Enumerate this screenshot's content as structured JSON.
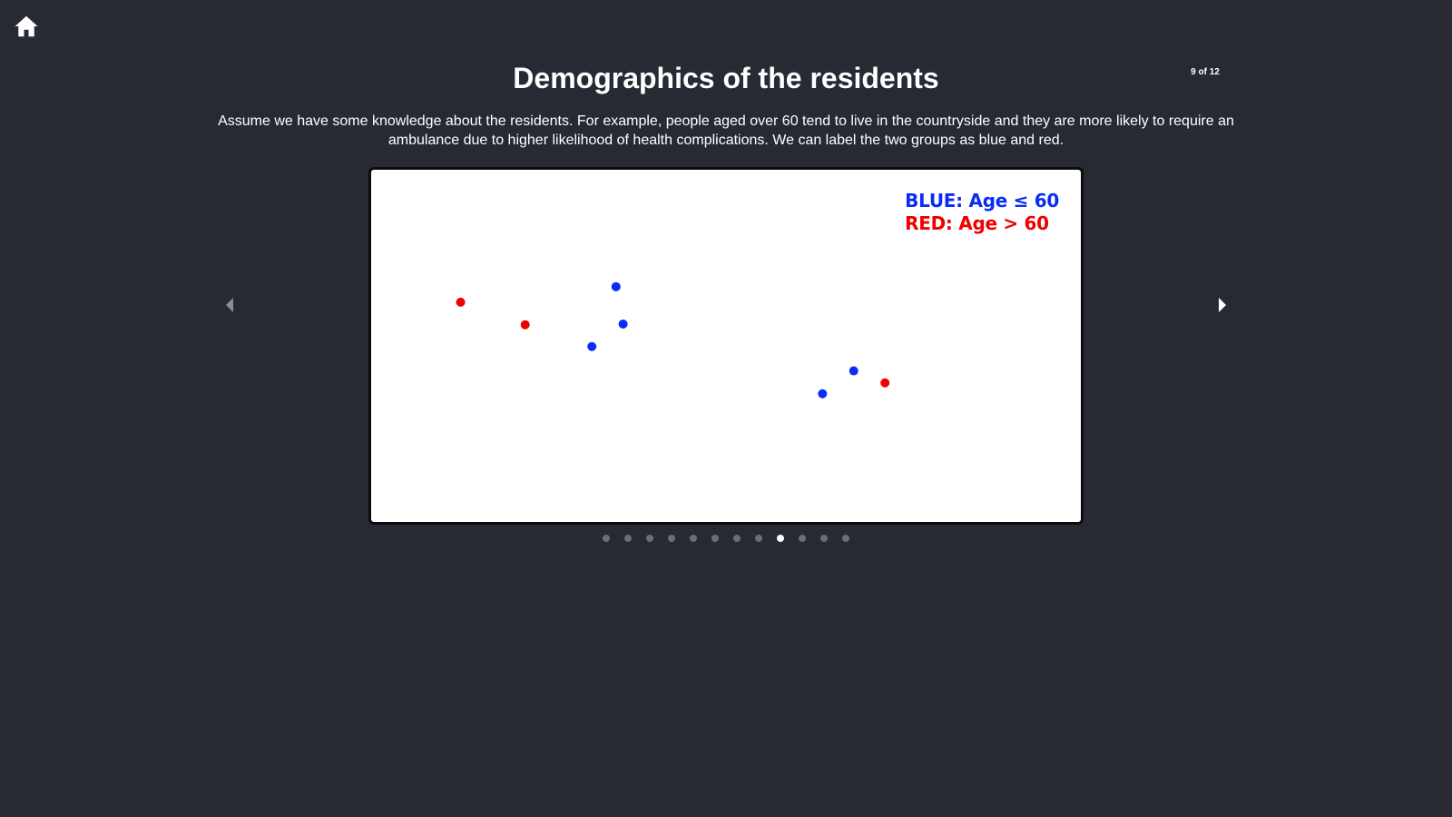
{
  "header": {
    "home_icon": "home-icon",
    "slide_counter": "9 of 12"
  },
  "slide": {
    "title": "Demographics of the residents",
    "description": "Assume we have some knowledge about the residents. For example, people aged over 60 tend to live in the countryside and they are more likely to require an ambulance due to higher likelihood of health complications. We can label the two groups as blue and red.",
    "legend": {
      "blue_label": "BLUE: Age ≤ 60",
      "red_label": "RED: Age > 60"
    }
  },
  "navigation": {
    "prev_icon": "caret-left-icon",
    "next_icon": "caret-right-icon",
    "total_slides": 12,
    "current_slide": 9
  },
  "colors": {
    "background": "#272a33",
    "blue": "#0a2cf5",
    "red": "#f00000",
    "dot_inactive": "#6a6e78",
    "dot_active": "#ffffff"
  },
  "chart_data": {
    "type": "scatter",
    "title": "",
    "xlabel": "",
    "ylabel": "",
    "xlim": [
      0,
      100
    ],
    "ylim": [
      0,
      100
    ],
    "grid": false,
    "legend_placement": "top-right",
    "series": [
      {
        "name": "BLUE: Age ≤ 60",
        "color": "#0a2cf5",
        "points": [
          {
            "x": 34.5,
            "y": 66.8
          },
          {
            "x": 35.5,
            "y": 56.2
          },
          {
            "x": 31.1,
            "y": 49.8
          },
          {
            "x": 63.6,
            "y": 36.4
          },
          {
            "x": 68.0,
            "y": 42.9
          }
        ]
      },
      {
        "name": "RED: Age > 60",
        "color": "#f00000",
        "points": [
          {
            "x": 12.6,
            "y": 62.4
          },
          {
            "x": 21.7,
            "y": 56.0
          },
          {
            "x": 72.4,
            "y": 39.5
          }
        ]
      }
    ]
  }
}
